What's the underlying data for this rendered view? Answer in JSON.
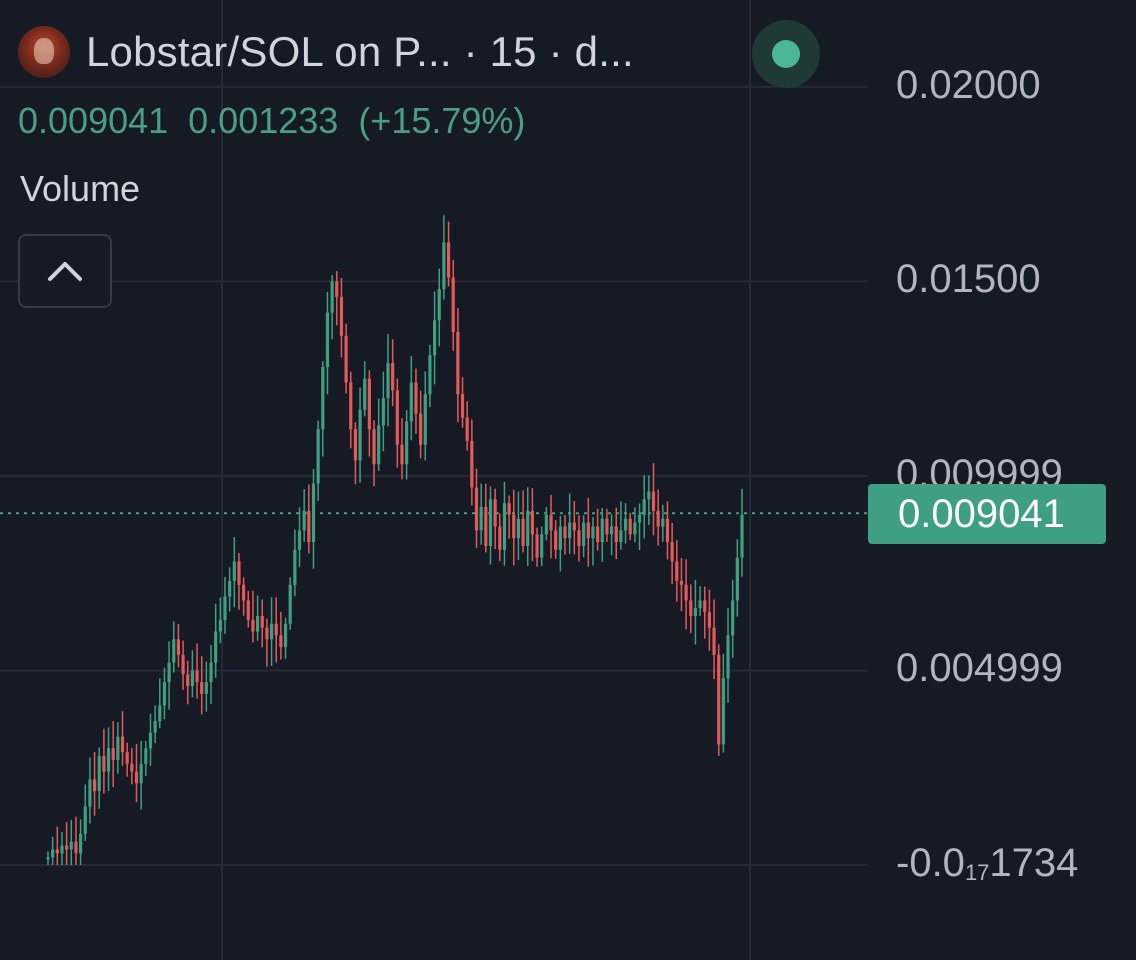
{
  "header": {
    "title": "Lobstar/SOL on P... · 15 · d...",
    "last_price": "0.009041",
    "change_abs": "0.001233",
    "change_pct": "(+15.79%)"
  },
  "volume": {
    "label": "Volume"
  },
  "colors": {
    "background": "#161a25",
    "up": "#3e9f83",
    "down": "#e45a5a",
    "grid": "#262a36",
    "price_tag": "#3e9f83"
  },
  "icons": {
    "avatar": "token-avatar",
    "status": "live-status-dot",
    "collapse": "chevron-up-icon"
  },
  "chart_data": {
    "type": "candlestick",
    "title": "Lobstar/SOL on P... · 15 · d...",
    "xlabel": "",
    "ylabel": "",
    "ylim": [
      -0.0002,
      0.0205
    ],
    "y_ticks": [
      {
        "value": 0.02,
        "label": "0.02000"
      },
      {
        "value": 0.015,
        "label": "0.01500"
      },
      {
        "value": 0.009999,
        "label": "0.009999"
      },
      {
        "value": 0.004999,
        "label": "0.004999"
      },
      {
        "value": 0,
        "label": "-0.0",
        "sub": "17",
        "suffix": "1734"
      }
    ],
    "current_price": 0.009041,
    "current_price_label": "0.009041",
    "grid": true,
    "closes": [
      0.0002,
      0.0004,
      0.0003,
      0.0005,
      0.0004,
      0.0006,
      0.0003,
      0.0008,
      0.0015,
      0.0022,
      0.0019,
      0.0028,
      0.0024,
      0.003,
      0.0027,
      0.0033,
      0.0029,
      0.0026,
      0.0024,
      0.0021,
      0.0026,
      0.003,
      0.0034,
      0.0037,
      0.0041,
      0.0047,
      0.0052,
      0.0058,
      0.0054,
      0.0049,
      0.0046,
      0.005,
      0.0047,
      0.0044,
      0.0047,
      0.0052,
      0.006,
      0.0063,
      0.0069,
      0.0073,
      0.0078,
      0.0072,
      0.0068,
      0.0063,
      0.006,
      0.0064,
      0.0061,
      0.0058,
      0.0062,
      0.0059,
      0.0056,
      0.0062,
      0.0072,
      0.0081,
      0.0086,
      0.0091,
      0.0083,
      0.0098,
      0.0112,
      0.0128,
      0.0142,
      0.015,
      0.0146,
      0.0136,
      0.0124,
      0.0112,
      0.0104,
      0.0117,
      0.0125,
      0.0112,
      0.0103,
      0.0113,
      0.012,
      0.0129,
      0.0122,
      0.0108,
      0.0103,
      0.0114,
      0.0124,
      0.0116,
      0.0108,
      0.0121,
      0.0131,
      0.014,
      0.0148,
      0.016,
      0.0151,
      0.0137,
      0.0121,
      0.0115,
      0.0109,
      0.0097,
      0.0086,
      0.0092,
      0.0082,
      0.0094,
      0.0087,
      0.0081,
      0.0093,
      0.009,
      0.0084,
      0.0089,
      0.0082,
      0.0091,
      0.0085,
      0.0079,
      0.0085,
      0.009,
      0.0086,
      0.0081,
      0.0087,
      0.0084,
      0.0088,
      0.0086,
      0.0082,
      0.0088,
      0.0084,
      0.0087,
      0.0083,
      0.0089,
      0.0085,
      0.0087,
      0.0083,
      0.0086,
      0.0089,
      0.0085,
      0.0088,
      0.009,
      0.0094,
      0.0096,
      0.0091,
      0.0087,
      0.0089,
      0.0083,
      0.0078,
      0.0073,
      0.0072,
      0.0068,
      0.0064,
      0.0066,
      0.0068,
      0.0065,
      0.0061,
      0.0054,
      0.0031,
      0.0048,
      0.0059,
      0.0068,
      0.0079,
      0.009
    ]
  }
}
